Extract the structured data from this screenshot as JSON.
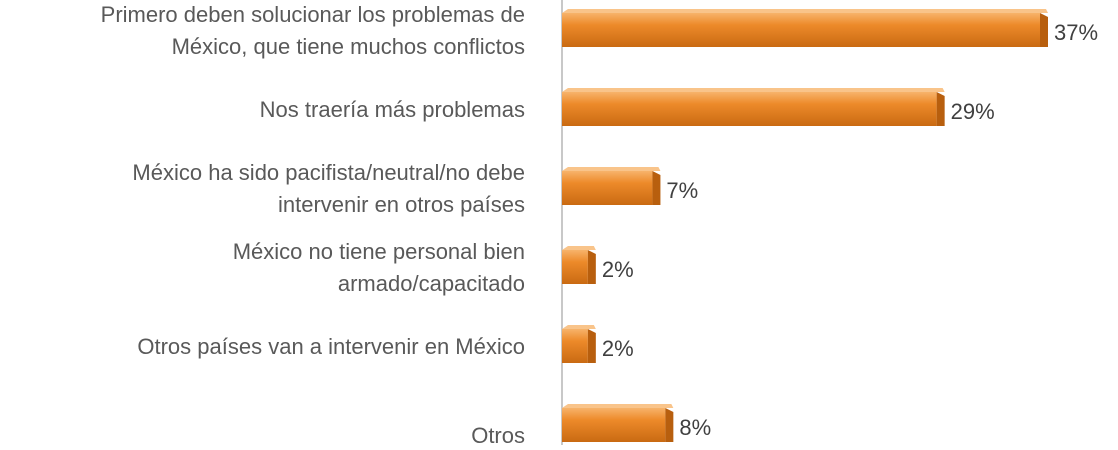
{
  "chart_data": {
    "type": "bar",
    "orientation": "horizontal",
    "categories": [
      "Primero deben solucionar los problemas de\nMéxico, que tiene muchos conflictos",
      "Nos traería más problemas",
      "México ha sido pacifista/neutral/no debe\nintervenir en otros países",
      "México no tiene personal bien\narmado/capacitado",
      "Otros países van a intervenir en México",
      "Otros"
    ],
    "values": [
      37,
      29,
      7,
      2,
      2,
      8
    ],
    "value_labels": [
      "37%",
      "29%",
      "7%",
      "2%",
      "2%",
      "8%"
    ],
    "color": "#ed8a2a"
  }
}
